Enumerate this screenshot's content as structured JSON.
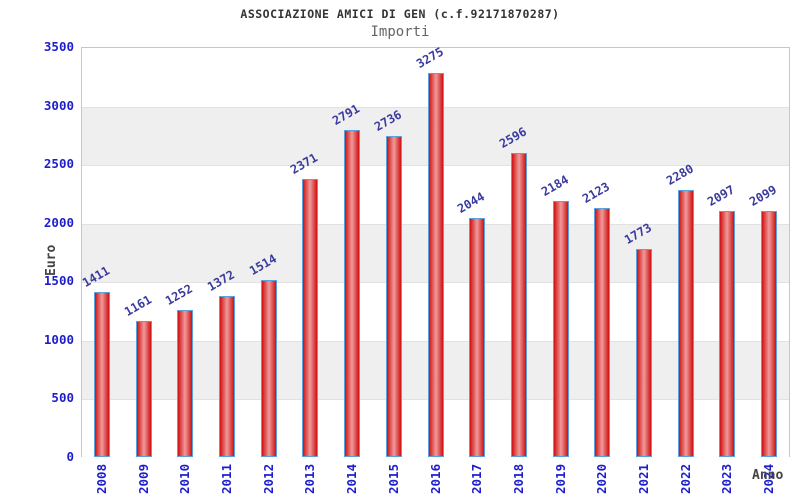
{
  "chart_data": {
    "type": "bar",
    "title": "ASSOCIAZIONE AMICI DI GEN (c.f.92171870287)",
    "subtitle": "Importi",
    "xlabel": "Anno",
    "ylabel": "Euro",
    "categories": [
      "2008",
      "2009",
      "2010",
      "2011",
      "2012",
      "2013",
      "2014",
      "2015",
      "2016",
      "2017",
      "2018",
      "2019",
      "2020",
      "2021",
      "2022",
      "2023",
      "2024"
    ],
    "values": [
      1411,
      1161,
      1252,
      1372,
      1514,
      2371,
      2791,
      2736,
      3275,
      2044,
      2596,
      2184,
      2123,
      1773,
      2280,
      2097,
      2099
    ],
    "ylim": [
      0,
      3500
    ],
    "ytick_step": 500,
    "grid": "alternating-horizontal-bands",
    "legend": "none",
    "colors": {
      "bar_edge": "#d01010",
      "bar_center": "#f09a9a",
      "bar_border": "#5aa2de",
      "tick_label": "#1e1ecd",
      "value_label": "#3b3b9e",
      "title": "#333333",
      "subtitle": "#666666",
      "axis_label": "#444444",
      "band_gray": "#efefef",
      "band_white": "#ffffff",
      "band_line": "#e2e2e2",
      "plot_border": "#c6c6c6"
    }
  }
}
